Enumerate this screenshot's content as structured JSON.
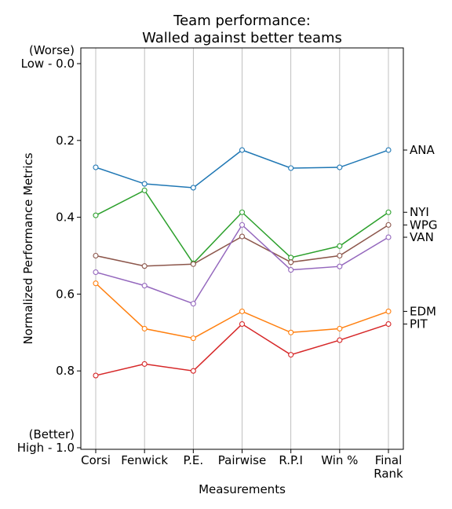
{
  "chart_data": {
    "type": "line",
    "title": [
      "Team performance:",
      "Walled against better teams"
    ],
    "xlabel": "Measurements",
    "ylabel": "Normalized Performance Metrics",
    "categories": [
      [
        "Corsi"
      ],
      [
        "Fenwick"
      ],
      [
        "P.E."
      ],
      [
        "Pairwise"
      ],
      [
        "R.P.I"
      ],
      [
        "Win %"
      ],
      [
        "Final",
        "Rank"
      ]
    ],
    "y_ticks": [
      {
        "value": 0.0,
        "lines": [
          "(Worse)",
          "Low - 0.0"
        ]
      },
      {
        "value": 0.2,
        "lines": [
          "0.2"
        ]
      },
      {
        "value": 0.4,
        "lines": [
          "0.4"
        ]
      },
      {
        "value": 0.6,
        "lines": [
          "0.6"
        ]
      },
      {
        "value": 0.8,
        "lines": [
          "0.8"
        ]
      },
      {
        "value": 1.0,
        "lines": [
          "(Better)",
          "High - 1.0"
        ]
      }
    ],
    "ylim": [
      0.0,
      1.0
    ],
    "y_inverted": true,
    "grid": "vertical",
    "series": [
      {
        "name": "ANA",
        "color": "#1f77b4",
        "values": [
          0.27,
          0.313,
          0.323,
          0.225,
          0.272,
          0.27,
          0.225
        ]
      },
      {
        "name": "NYI",
        "color": "#2ca02c",
        "values": [
          0.395,
          0.33,
          0.52,
          0.387,
          0.505,
          0.475,
          0.387
        ]
      },
      {
        "name": "WPG",
        "color": "#8c564b",
        "values": [
          0.5,
          0.527,
          0.522,
          0.45,
          0.517,
          0.5,
          0.42
        ]
      },
      {
        "name": "VAN",
        "color": "#9467bd",
        "values": [
          0.543,
          0.578,
          0.625,
          0.42,
          0.537,
          0.528,
          0.452
        ]
      },
      {
        "name": "EDM",
        "color": "#ff7f0e",
        "values": [
          0.572,
          0.69,
          0.715,
          0.645,
          0.7,
          0.69,
          0.645
        ]
      },
      {
        "name": "PIT",
        "color": "#d62728",
        "values": [
          0.812,
          0.782,
          0.8,
          0.678,
          0.758,
          0.72,
          0.678
        ]
      }
    ],
    "right_labels": [
      {
        "text": "ANA",
        "value": 0.225
      },
      {
        "text": "NYI",
        "value": 0.387
      },
      {
        "text": "WPG",
        "value": 0.42
      },
      {
        "text": "VAN",
        "value": 0.452
      },
      {
        "text": "EDM",
        "value": 0.645
      },
      {
        "text": "PIT",
        "value": 0.678
      }
    ]
  }
}
